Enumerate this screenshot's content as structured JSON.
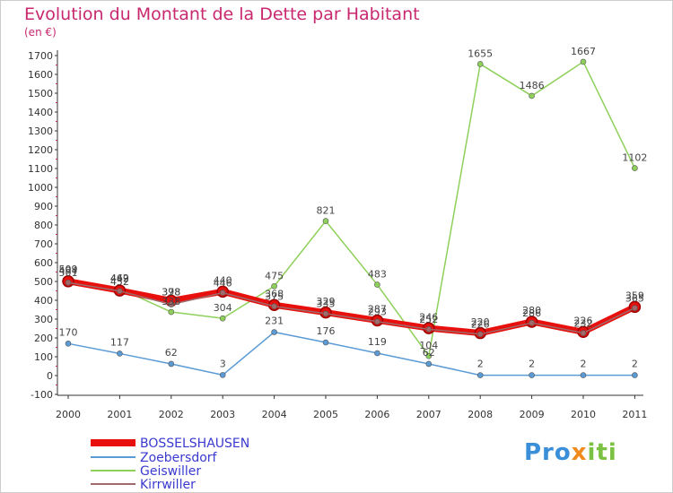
{
  "title": "Evolution du Montant de la Dette par Habitant",
  "subtitle": "(en €)",
  "logo": {
    "part1": "Pro",
    "part2": "x",
    "part3": "iti"
  },
  "chart_data": {
    "type": "line",
    "title": "Evolution du Montant de la Dette par Habitant",
    "ylabel": "(en €)",
    "xlabel": "",
    "ylim": [
      -100,
      1700
    ],
    "grid": false,
    "legend_position": "bottom-left",
    "yticks": [
      -100,
      0,
      100,
      200,
      300,
      400,
      500,
      600,
      700,
      800,
      900,
      1000,
      1100,
      1200,
      1300,
      1400,
      1500,
      1600,
      1700
    ],
    "categories": [
      "2000",
      "2001",
      "2002",
      "2003",
      "2004",
      "2005",
      "2006",
      "2007",
      "2008",
      "2009",
      "2010",
      "2011"
    ],
    "series": [
      {
        "name": "BOSSELSHAUSEN",
        "color": "#e8100c",
        "values": [
          501,
          452,
          398,
          446,
          375,
          335,
          293,
          252,
          226,
          286,
          232,
          365
        ],
        "labels": [
          "501",
          "452",
          "398",
          "446",
          "375",
          "335",
          "293",
          "252",
          "226",
          "286",
          "232",
          "365"
        ]
      },
      {
        "name": "Zoebersdorf",
        "color": "#5b9bd5",
        "values": [
          170,
          117,
          62,
          3,
          231,
          176,
          119,
          62,
          2,
          2,
          2,
          2
        ],
        "labels": [
          "170",
          "117",
          "62",
          "3",
          "231",
          "176",
          "119",
          "62",
          "2",
          "2",
          "2",
          "2"
        ]
      },
      {
        "name": "Geiswiller",
        "color": "#8ed05a",
        "values": [
          509,
          462,
          338,
          304,
          475,
          821,
          483,
          104,
          1655,
          1486,
          1667,
          1102
        ],
        "labels": [
          "509",
          "462",
          "338",
          "304",
          "475",
          "821",
          "483",
          "104",
          "1655",
          "1486",
          "1667",
          "1102"
        ]
      },
      {
        "name": "Kirrwiller",
        "color": "#a06a6a",
        "values": [
          494,
          449,
          378,
          440,
          368,
          329,
          287,
          246,
          220,
          280,
          226,
          359
        ],
        "labels": [
          "494",
          "449",
          "378",
          "440",
          "368",
          "329",
          "287",
          "246",
          "220",
          "280",
          "226",
          "359"
        ]
      }
    ]
  }
}
